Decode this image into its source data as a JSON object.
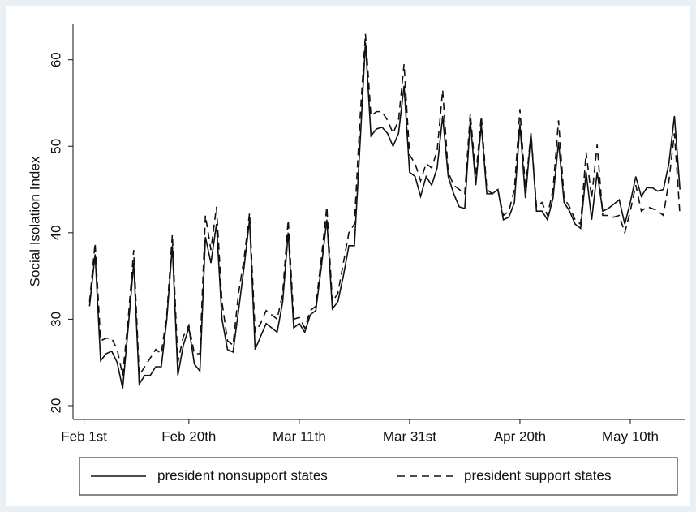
{
  "chart_data": {
    "type": "line",
    "ylabel": "Social Isolation Index",
    "x": [
      1,
      2,
      3,
      4,
      5,
      6,
      7,
      8,
      9,
      10,
      11,
      12,
      13,
      14,
      15,
      16,
      17,
      18,
      19,
      20,
      21,
      22,
      23,
      24,
      25,
      26,
      27,
      28,
      29,
      30,
      31,
      32,
      33,
      34,
      35,
      36,
      37,
      38,
      39,
      40,
      41,
      42,
      43,
      44,
      45,
      46,
      47,
      48,
      49,
      50,
      51,
      52,
      53,
      54,
      55,
      56,
      57,
      58,
      59,
      60,
      61,
      62,
      63,
      64,
      65,
      66,
      67,
      68,
      69,
      70,
      71,
      72,
      73,
      74,
      75,
      76,
      77,
      78,
      79,
      80,
      81,
      82,
      83,
      84,
      85,
      86,
      87,
      88,
      89,
      90,
      91,
      92,
      93,
      94,
      95,
      96,
      97,
      98,
      99,
      100,
      101,
      102,
      103,
      104,
      105,
      106,
      107,
      108
    ],
    "xlim": [
      -2,
      109
    ],
    "xticks": [
      {
        "value": 0,
        "label": "Feb 1st"
      },
      {
        "value": 19,
        "label": "Feb 20th"
      },
      {
        "value": 39,
        "label": "Mar 11th"
      },
      {
        "value": 59,
        "label": "Mar 31st"
      },
      {
        "value": 79,
        "label": "Apr 20th"
      },
      {
        "value": 99,
        "label": "May 10th"
      }
    ],
    "ylim": [
      18.4,
      64.1
    ],
    "yticks": [
      20,
      30,
      40,
      50,
      60
    ],
    "grid": false,
    "legend": "bottom",
    "series": [
      {
        "name": "president nonsupport states",
        "color": "#111111",
        "dash": "none",
        "values": [
          31.5,
          37.5,
          25.2,
          26,
          26.3,
          25,
          22,
          29,
          36.5,
          22.5,
          23.5,
          23.5,
          24.5,
          24.5,
          30,
          38.5,
          23.5,
          27,
          29,
          24.8,
          24,
          39.5,
          36.5,
          41,
          30,
          26.5,
          26.2,
          31,
          36,
          41.5,
          26.5,
          28,
          29.5,
          29,
          28.5,
          32,
          40,
          29,
          29.5,
          28.5,
          30.5,
          31,
          36,
          41.5,
          31.2,
          32,
          35,
          38.5,
          38.5,
          50,
          62,
          51.2,
          52,
          52.2,
          51.5,
          50,
          51.5,
          57,
          47,
          46.5,
          44.2,
          46.5,
          45.5,
          47.5,
          53.5,
          46.5,
          44.5,
          43,
          42.8,
          53,
          45.5,
          52.5,
          44.5,
          44.5,
          45,
          41.5,
          41.8,
          43.5,
          52.5,
          44,
          51.5,
          42.5,
          42.5,
          41.5,
          44,
          50.5,
          43.5,
          42.5,
          41,
          40.5,
          47,
          41.5,
          47,
          42.5,
          42.8,
          43.3,
          43.8,
          41,
          43.5,
          46.5,
          44.2,
          45.2,
          45.2,
          44.8,
          45,
          48,
          53.5,
          45
        ]
      },
      {
        "name": "president support states",
        "color": "#111111",
        "dash": "9 6",
        "values": [
          32,
          38.8,
          27.5,
          27.8,
          27.8,
          26.5,
          23.5,
          30,
          38,
          23.5,
          24.5,
          25.5,
          26.5,
          26,
          30.5,
          39.8,
          25,
          28,
          29.3,
          26,
          26,
          42,
          38,
          43,
          32,
          27.5,
          27,
          33,
          37,
          42.3,
          28.5,
          29.5,
          31,
          30.5,
          30,
          33,
          41.5,
          30,
          30.2,
          29,
          31,
          31.5,
          37,
          43,
          32,
          33,
          36.5,
          40,
          41,
          53,
          63,
          53.5,
          54,
          54,
          53,
          51.5,
          53,
          59.5,
          49,
          48,
          46,
          48,
          47.5,
          49.5,
          56.5,
          47,
          45.5,
          45,
          44.5,
          53.8,
          46.5,
          53.5,
          45,
          44.5,
          45,
          42,
          42.5,
          45,
          54.3,
          45,
          51.5,
          43,
          43.5,
          42,
          45,
          53,
          44,
          43,
          41.5,
          41,
          49.3,
          44,
          50.2,
          42,
          42,
          41.8,
          42,
          40,
          42.5,
          45.5,
          42.5,
          43,
          42.8,
          42.5,
          42,
          46,
          51.5,
          42
        ]
      }
    ]
  }
}
